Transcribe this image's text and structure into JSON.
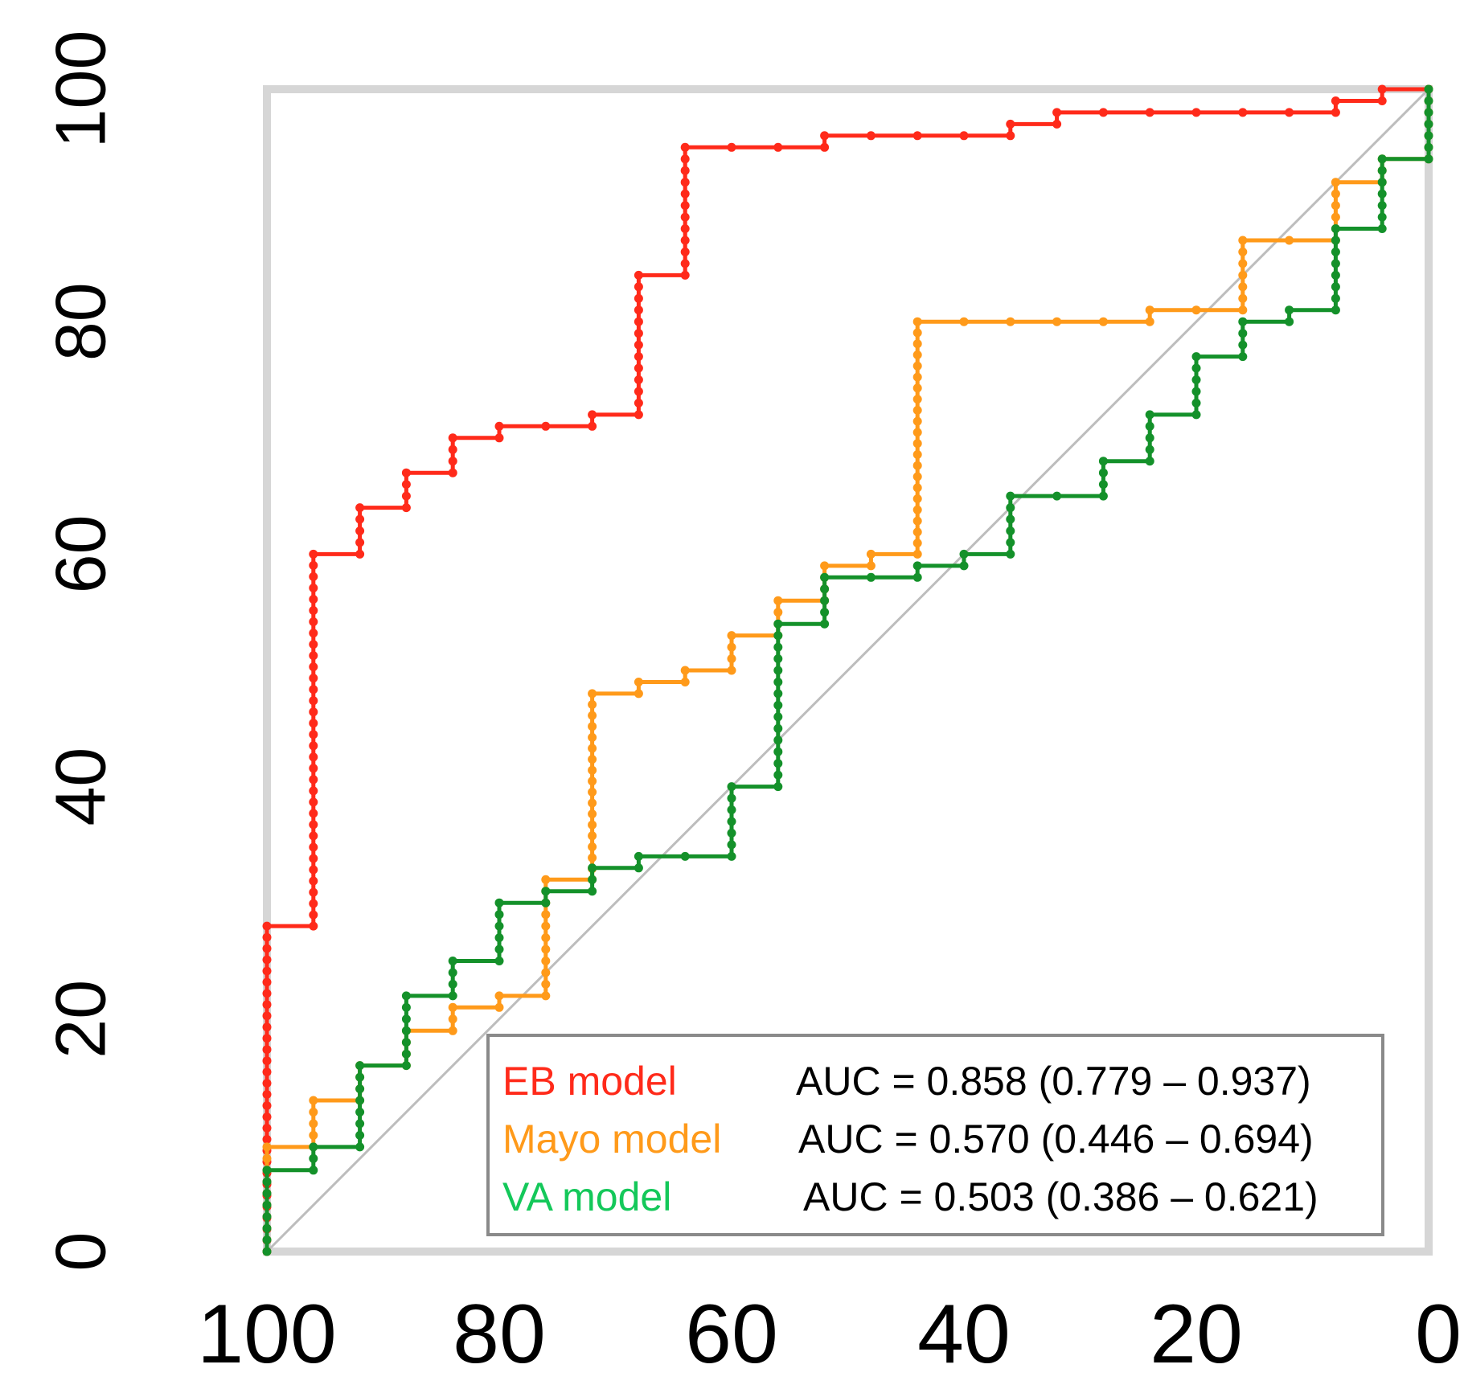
{
  "chart_data": {
    "type": "line",
    "title": "",
    "xlabel": "",
    "ylabel": "",
    "x_reversed": true,
    "xlim": [
      100,
      0
    ],
    "ylim": [
      0,
      100
    ],
    "x_ticks": [
      "100",
      "80",
      "60",
      "40",
      "20",
      "0"
    ],
    "y_ticks": [
      "0",
      "20",
      "40",
      "60",
      "80",
      "100"
    ],
    "diagonal": {
      "points": [
        [
          100,
          0
        ],
        [
          0,
          100
        ]
      ],
      "color": "#bdbdbd"
    },
    "series": [
      {
        "name": "EB model",
        "auc": "AUC = 0.858 (0.779 – 0.937)",
        "color": "#ff2a1a",
        "points": [
          [
            100,
            0
          ],
          [
            100,
            28
          ],
          [
            96,
            28
          ],
          [
            96,
            60
          ],
          [
            92,
            60
          ],
          [
            92,
            64
          ],
          [
            88,
            64
          ],
          [
            88,
            67
          ],
          [
            84,
            67
          ],
          [
            84,
            70
          ],
          [
            80,
            70
          ],
          [
            80,
            71
          ],
          [
            72,
            71
          ],
          [
            72,
            72
          ],
          [
            68,
            72
          ],
          [
            68,
            84
          ],
          [
            64,
            84
          ],
          [
            64,
            95
          ],
          [
            52,
            95
          ],
          [
            52,
            96
          ],
          [
            36,
            96
          ],
          [
            36,
            97
          ],
          [
            32,
            97
          ],
          [
            32,
            98
          ],
          [
            8,
            98
          ],
          [
            8,
            99
          ],
          [
            4,
            99
          ],
          [
            4,
            100
          ],
          [
            0,
            100
          ]
        ]
      },
      {
        "name": "Mayo model",
        "auc": "AUC = 0.570 (0.446 – 0.694)",
        "color": "#ff9a1a",
        "points": [
          [
            100,
            0
          ],
          [
            100,
            9
          ],
          [
            96,
            9
          ],
          [
            96,
            13
          ],
          [
            92,
            13
          ],
          [
            92,
            16
          ],
          [
            88,
            16
          ],
          [
            88,
            19
          ],
          [
            84,
            19
          ],
          [
            84,
            21
          ],
          [
            80,
            21
          ],
          [
            80,
            22
          ],
          [
            76,
            22
          ],
          [
            76,
            32
          ],
          [
            72,
            32
          ],
          [
            72,
            48
          ],
          [
            68,
            48
          ],
          [
            68,
            49
          ],
          [
            64,
            49
          ],
          [
            64,
            50
          ],
          [
            60,
            50
          ],
          [
            60,
            53
          ],
          [
            56,
            53
          ],
          [
            56,
            56
          ],
          [
            52,
            56
          ],
          [
            52,
            59
          ],
          [
            48,
            59
          ],
          [
            48,
            60
          ],
          [
            44,
            60
          ],
          [
            44,
            80
          ],
          [
            24,
            80
          ],
          [
            24,
            81
          ],
          [
            16,
            81
          ],
          [
            16,
            87
          ],
          [
            8,
            87
          ],
          [
            8,
            92
          ],
          [
            4,
            92
          ],
          [
            4,
            94
          ],
          [
            0,
            94
          ],
          [
            0,
            100
          ]
        ]
      },
      {
        "name": "VA model",
        "auc": "AUC = 0.503 (0.386 – 0.621)",
        "color": "#14912a",
        "points": [
          [
            100,
            0
          ],
          [
            100,
            7
          ],
          [
            96,
            7
          ],
          [
            96,
            9
          ],
          [
            92,
            9
          ],
          [
            92,
            16
          ],
          [
            88,
            16
          ],
          [
            88,
            22
          ],
          [
            84,
            22
          ],
          [
            84,
            25
          ],
          [
            80,
            25
          ],
          [
            80,
            30
          ],
          [
            76,
            30
          ],
          [
            76,
            31
          ],
          [
            72,
            31
          ],
          [
            72,
            33
          ],
          [
            68,
            33
          ],
          [
            68,
            34
          ],
          [
            60,
            34
          ],
          [
            60,
            40
          ],
          [
            56,
            40
          ],
          [
            56,
            54
          ],
          [
            52,
            54
          ],
          [
            52,
            58
          ],
          [
            44,
            58
          ],
          [
            44,
            59
          ],
          [
            40,
            59
          ],
          [
            40,
            60
          ],
          [
            36,
            60
          ],
          [
            36,
            65
          ],
          [
            28,
            65
          ],
          [
            28,
            68
          ],
          [
            24,
            68
          ],
          [
            24,
            72
          ],
          [
            20,
            72
          ],
          [
            20,
            77
          ],
          [
            16,
            77
          ],
          [
            16,
            80
          ],
          [
            12,
            80
          ],
          [
            12,
            81
          ],
          [
            8,
            81
          ],
          [
            8,
            88
          ],
          [
            4,
            88
          ],
          [
            4,
            94
          ],
          [
            0,
            94
          ],
          [
            0,
            100
          ]
        ]
      }
    ],
    "legend": {
      "position": "bottom-right",
      "label_colors": [
        "#ff2a1a",
        "#ff9a1a",
        "#14c85a"
      ]
    },
    "frame_color": "#d6d6d6"
  }
}
